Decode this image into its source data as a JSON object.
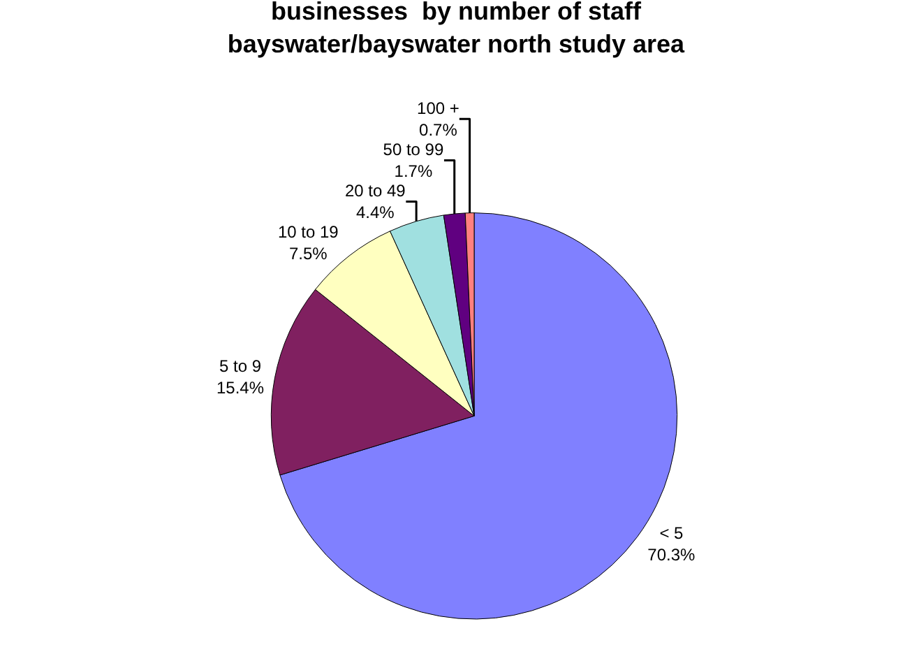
{
  "chart_data": {
    "type": "pie",
    "title": "businesses  by number of staff\nbayswater/bayswater north study area",
    "categories": [
      "< 5",
      "5 to 9",
      "10 to 19",
      "20 to 49",
      "50 to 99",
      "100 +"
    ],
    "values": [
      70.3,
      15.4,
      7.5,
      4.4,
      1.7,
      0.7
    ],
    "value_labels": [
      "70.3%",
      "15.4%",
      "7.5%",
      "4.4%",
      "1.7%",
      "0.7%"
    ],
    "colors": [
      "#8080ff",
      "#802060",
      "#ffffc0",
      "#a0e0e0",
      "#600080",
      "#ff8080"
    ],
    "legend": false
  }
}
